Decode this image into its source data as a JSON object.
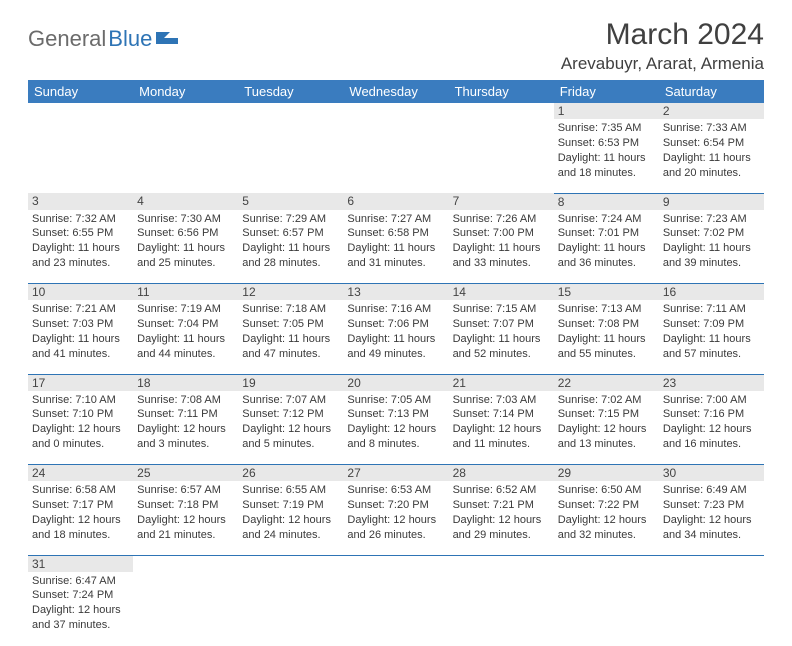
{
  "logo": {
    "general": "General",
    "blue": "Blue"
  },
  "title": "March 2024",
  "location": "Arevabuyr, Ararat, Armenia",
  "colors": {
    "header_bg": "#3a7cbf",
    "header_fg": "#ffffff",
    "daynum_bg": "#e8e8e8",
    "cell_border": "#2e74b5",
    "logo_gray": "#6b6b6b",
    "logo_blue": "#2e74b5"
  },
  "weekdays": [
    "Sunday",
    "Monday",
    "Tuesday",
    "Wednesday",
    "Thursday",
    "Friday",
    "Saturday"
  ],
  "weeks": [
    {
      "nums": [
        "",
        "",
        "",
        "",
        "",
        "1",
        "2"
      ],
      "cells": [
        null,
        null,
        null,
        null,
        null,
        {
          "sr": "7:35 AM",
          "ss": "6:53 PM",
          "dh": 11,
          "dm": 18
        },
        {
          "sr": "7:33 AM",
          "ss": "6:54 PM",
          "dh": 11,
          "dm": 20
        }
      ]
    },
    {
      "nums": [
        "3",
        "4",
        "5",
        "6",
        "7",
        "8",
        "9"
      ],
      "cells": [
        {
          "sr": "7:32 AM",
          "ss": "6:55 PM",
          "dh": 11,
          "dm": 23
        },
        {
          "sr": "7:30 AM",
          "ss": "6:56 PM",
          "dh": 11,
          "dm": 25
        },
        {
          "sr": "7:29 AM",
          "ss": "6:57 PM",
          "dh": 11,
          "dm": 28
        },
        {
          "sr": "7:27 AM",
          "ss": "6:58 PM",
          "dh": 11,
          "dm": 31
        },
        {
          "sr": "7:26 AM",
          "ss": "7:00 PM",
          "dh": 11,
          "dm": 33
        },
        {
          "sr": "7:24 AM",
          "ss": "7:01 PM",
          "dh": 11,
          "dm": 36
        },
        {
          "sr": "7:23 AM",
          "ss": "7:02 PM",
          "dh": 11,
          "dm": 39
        }
      ]
    },
    {
      "nums": [
        "10",
        "11",
        "12",
        "13",
        "14",
        "15",
        "16"
      ],
      "cells": [
        {
          "sr": "7:21 AM",
          "ss": "7:03 PM",
          "dh": 11,
          "dm": 41
        },
        {
          "sr": "7:19 AM",
          "ss": "7:04 PM",
          "dh": 11,
          "dm": 44
        },
        {
          "sr": "7:18 AM",
          "ss": "7:05 PM",
          "dh": 11,
          "dm": 47
        },
        {
          "sr": "7:16 AM",
          "ss": "7:06 PM",
          "dh": 11,
          "dm": 49
        },
        {
          "sr": "7:15 AM",
          "ss": "7:07 PM",
          "dh": 11,
          "dm": 52
        },
        {
          "sr": "7:13 AM",
          "ss": "7:08 PM",
          "dh": 11,
          "dm": 55
        },
        {
          "sr": "7:11 AM",
          "ss": "7:09 PM",
          "dh": 11,
          "dm": 57
        }
      ]
    },
    {
      "nums": [
        "17",
        "18",
        "19",
        "20",
        "21",
        "22",
        "23"
      ],
      "cells": [
        {
          "sr": "7:10 AM",
          "ss": "7:10 PM",
          "dh": 12,
          "dm": 0
        },
        {
          "sr": "7:08 AM",
          "ss": "7:11 PM",
          "dh": 12,
          "dm": 3
        },
        {
          "sr": "7:07 AM",
          "ss": "7:12 PM",
          "dh": 12,
          "dm": 5
        },
        {
          "sr": "7:05 AM",
          "ss": "7:13 PM",
          "dh": 12,
          "dm": 8
        },
        {
          "sr": "7:03 AM",
          "ss": "7:14 PM",
          "dh": 12,
          "dm": 11
        },
        {
          "sr": "7:02 AM",
          "ss": "7:15 PM",
          "dh": 12,
          "dm": 13
        },
        {
          "sr": "7:00 AM",
          "ss": "7:16 PM",
          "dh": 12,
          "dm": 16
        }
      ]
    },
    {
      "nums": [
        "24",
        "25",
        "26",
        "27",
        "28",
        "29",
        "30"
      ],
      "cells": [
        {
          "sr": "6:58 AM",
          "ss": "7:17 PM",
          "dh": 12,
          "dm": 18
        },
        {
          "sr": "6:57 AM",
          "ss": "7:18 PM",
          "dh": 12,
          "dm": 21
        },
        {
          "sr": "6:55 AM",
          "ss": "7:19 PM",
          "dh": 12,
          "dm": 24
        },
        {
          "sr": "6:53 AM",
          "ss": "7:20 PM",
          "dh": 12,
          "dm": 26
        },
        {
          "sr": "6:52 AM",
          "ss": "7:21 PM",
          "dh": 12,
          "dm": 29
        },
        {
          "sr": "6:50 AM",
          "ss": "7:22 PM",
          "dh": 12,
          "dm": 32
        },
        {
          "sr": "6:49 AM",
          "ss": "7:23 PM",
          "dh": 12,
          "dm": 34
        }
      ]
    },
    {
      "nums": [
        "31",
        "",
        "",
        "",
        "",
        "",
        ""
      ],
      "cells": [
        {
          "sr": "6:47 AM",
          "ss": "7:24 PM",
          "dh": 12,
          "dm": 37
        },
        null,
        null,
        null,
        null,
        null,
        null
      ]
    }
  ],
  "labels": {
    "sunrise": "Sunrise:",
    "sunset": "Sunset:",
    "daylight": "Daylight:",
    "hours": "hours",
    "and": "and",
    "minutes": "minutes."
  }
}
